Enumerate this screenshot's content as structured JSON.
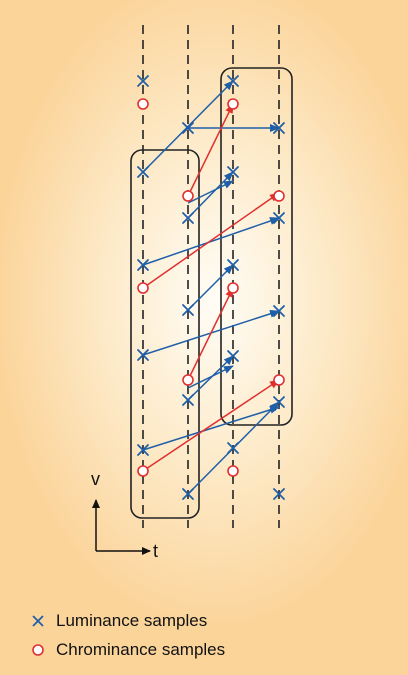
{
  "axes": {
    "vertical_label": "v",
    "horizontal_label": "t"
  },
  "legend": [
    {
      "symbol": "cross",
      "label": "Luminance samples",
      "color": "#1f5fa8"
    },
    {
      "symbol": "circle",
      "label": "Chrominance samples",
      "color": "#e03030"
    }
  ],
  "colors": {
    "luminance": "#1f5fa8",
    "chrominance": "#e03030",
    "background": "#fbd49a",
    "group_outline": "#222222"
  },
  "fields": 4,
  "groups": 2
}
